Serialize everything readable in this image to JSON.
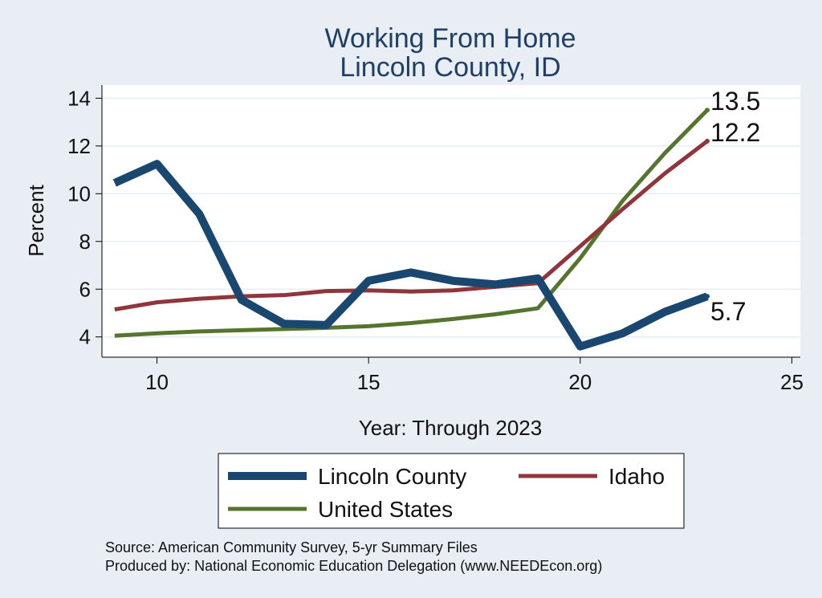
{
  "chart_data": {
    "type": "line",
    "title": [
      "Working From Home",
      "Lincoln County, ID"
    ],
    "xlabel": "Year: Through 2023",
    "ylabel": "Percent",
    "xlim": [
      8.7,
      25.2
    ],
    "ylim": [
      3.15,
      14.55
    ],
    "xticks": [
      10,
      15,
      20,
      25
    ],
    "yticks": [
      4,
      6,
      8,
      10,
      12,
      14
    ],
    "grid": true,
    "legend_placement": "bottom",
    "x": [
      9,
      10,
      11,
      12,
      13,
      14,
      15,
      16,
      17,
      18,
      19,
      20,
      21,
      22,
      23
    ],
    "series": [
      {
        "name": "Lincoln County",
        "color": "#1a476f",
        "width": 10,
        "values": [
          10.45,
          11.25,
          9.15,
          5.55,
          4.55,
          4.5,
          6.35,
          6.7,
          6.35,
          6.2,
          6.45,
          3.6,
          4.15,
          5.05,
          5.7
        ],
        "end_label": "5.7"
      },
      {
        "name": "Idaho",
        "color": "#90353b",
        "width": 5,
        "values": [
          5.15,
          5.45,
          5.6,
          5.7,
          5.75,
          5.92,
          5.95,
          5.9,
          5.95,
          6.1,
          6.25,
          7.8,
          9.35,
          10.85,
          12.2
        ],
        "end_label": "12.2"
      },
      {
        "name": "United States",
        "color": "#55752f",
        "width": 5,
        "values": [
          4.05,
          4.15,
          4.23,
          4.28,
          4.33,
          4.38,
          4.45,
          4.58,
          4.75,
          4.95,
          5.2,
          7.3,
          9.7,
          11.7,
          13.5
        ],
        "end_label": "13.5"
      }
    ],
    "source_lines": [
      "Source: American Community Survey, 5-yr Summary Files",
      "Produced by: National Economic Education Delegation (www.NEEDEcon.org)"
    ]
  },
  "colors": {
    "background": "#e8eef3",
    "plot_background": "#ffffff",
    "grid": "#e8eef3",
    "title": "#1f3f66"
  }
}
